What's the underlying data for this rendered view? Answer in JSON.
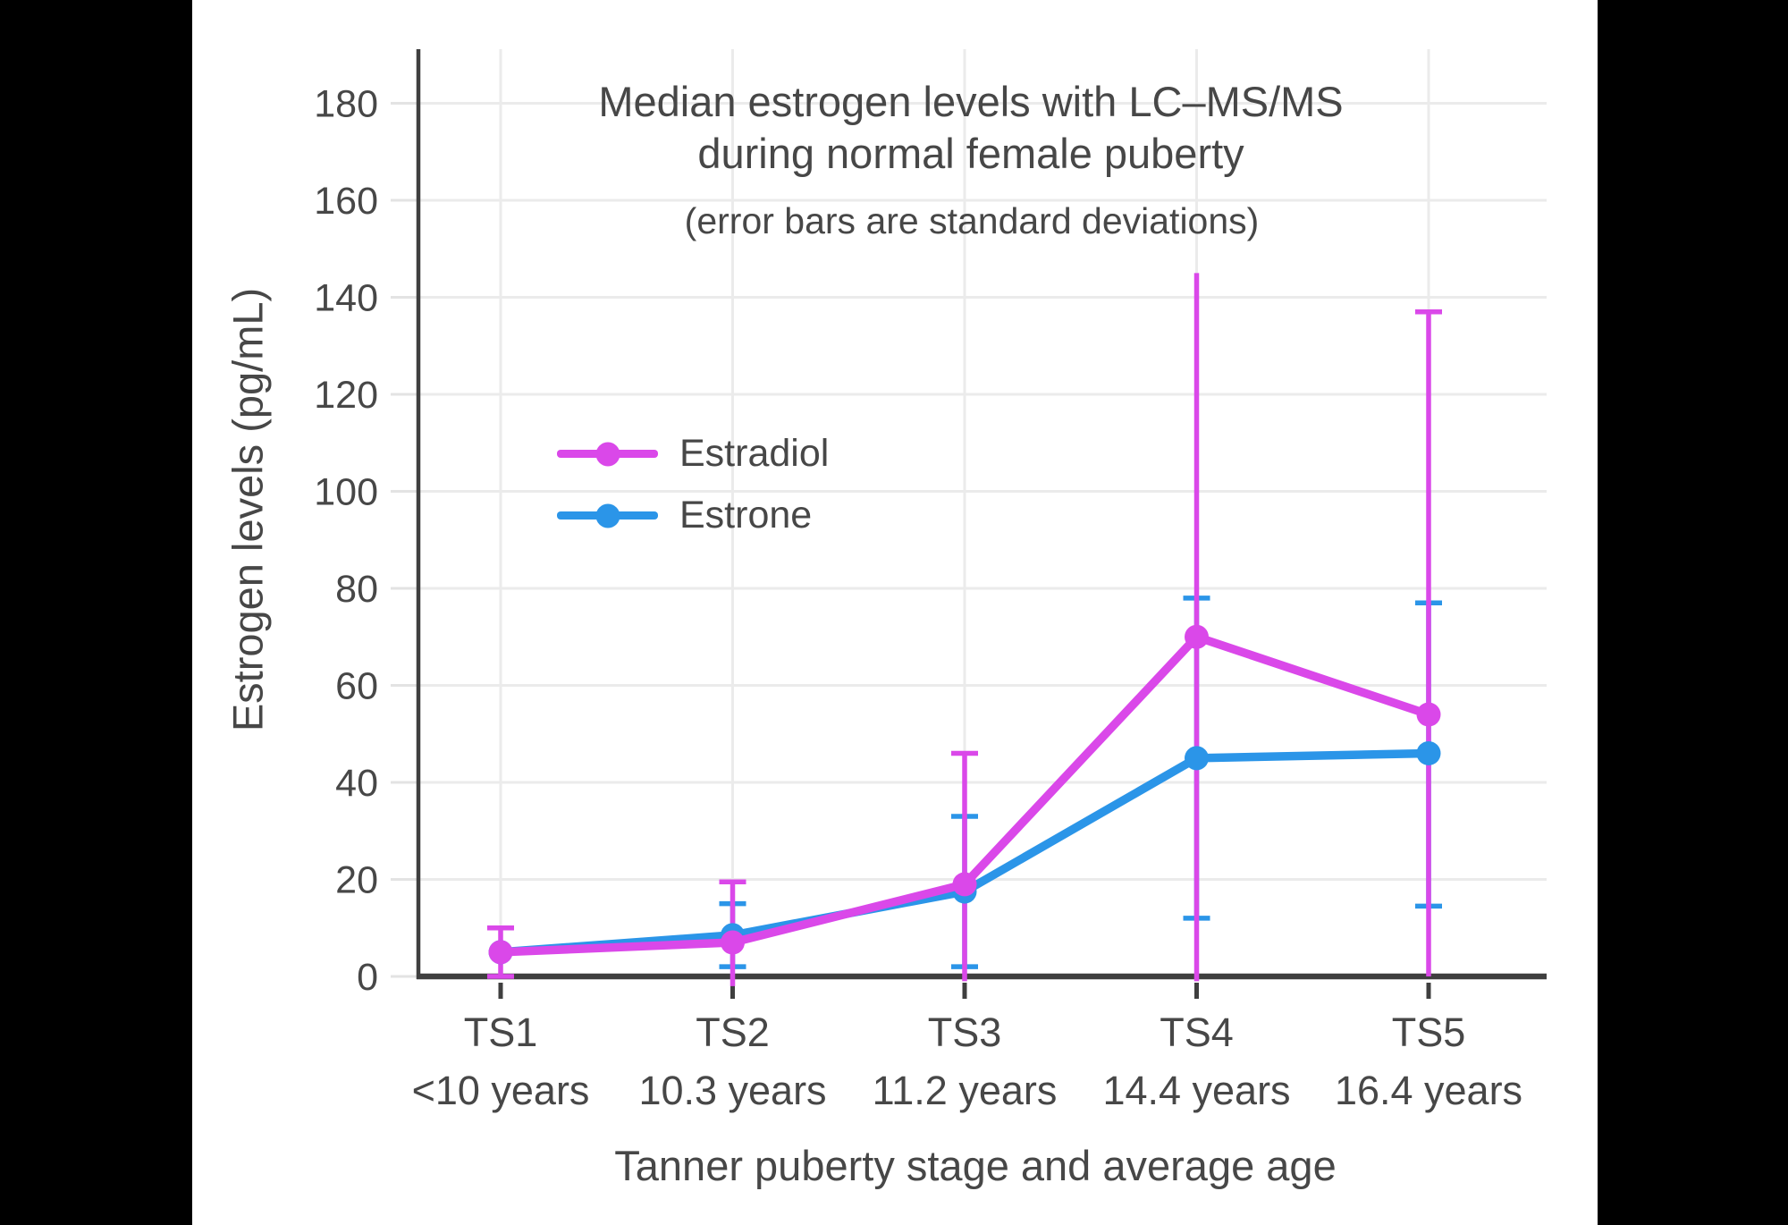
{
  "page": {
    "background": "#000000",
    "canvas_background": "#FFFFFF"
  },
  "axes": {
    "axis_color": "#3F3F3F",
    "grid_color": "#EBEBEB",
    "tick_color": "#E3E3E3",
    "text_color": "#474747"
  },
  "legend": {
    "items": [
      {
        "label": "Estradiol",
        "color": "#DA48E9"
      },
      {
        "label": "Estrone",
        "color": "#2B95E8"
      }
    ]
  },
  "chart_data": {
    "type": "line",
    "title_line1": "Median estrogen levels with LC–MS/MS",
    "title_line2": "during normal female puberty",
    "subtitle": "(error bars are standard deviations)",
    "xlabel": "Tanner puberty stage and average age",
    "ylabel": "Estrogen levels (pg/mL)",
    "categories": [
      "TS1",
      "TS2",
      "TS3",
      "TS4",
      "TS5"
    ],
    "category_ages": [
      "<10 years",
      "10.3 years",
      "11.2 years",
      "14.4 years",
      "16.4 years"
    ],
    "yticks": [
      0,
      20,
      40,
      60,
      80,
      100,
      120,
      140,
      160,
      180
    ],
    "ylim": [
      0,
      192
    ],
    "grid": true,
    "legend_position": "upper-left-inside",
    "series": [
      {
        "name": "Estradiol",
        "color": "#DA48E9",
        "values": [
          5,
          7,
          19,
          70,
          54
        ],
        "error_bars": [
          {
            "low": 0,
            "high": 10,
            "low_cap": true,
            "high_cap": true
          },
          {
            "low": -2,
            "high": 19.5,
            "low_cap": false,
            "high_cap": true
          },
          {
            "low": -1,
            "high": 46,
            "low_cap": false,
            "high_cap": true
          },
          {
            "low": -1,
            "high": 145,
            "low_cap": false,
            "high_cap": false
          },
          {
            "low": 0,
            "high": 137,
            "low_cap": false,
            "high_cap": true
          }
        ]
      },
      {
        "name": "Estrone",
        "color": "#2B95E8",
        "values": [
          5,
          8.5,
          17.5,
          45,
          46
        ],
        "error_bars": [
          null,
          {
            "low": 2,
            "high": 15,
            "low_cap": true,
            "high_cap": true
          },
          {
            "low": 2,
            "high": 33,
            "low_cap": true,
            "high_cap": true
          },
          {
            "low": 12,
            "high": 78,
            "low_cap": true,
            "high_cap": true
          },
          {
            "low": 14.5,
            "high": 77,
            "low_cap": true,
            "high_cap": true
          }
        ]
      }
    ]
  }
}
